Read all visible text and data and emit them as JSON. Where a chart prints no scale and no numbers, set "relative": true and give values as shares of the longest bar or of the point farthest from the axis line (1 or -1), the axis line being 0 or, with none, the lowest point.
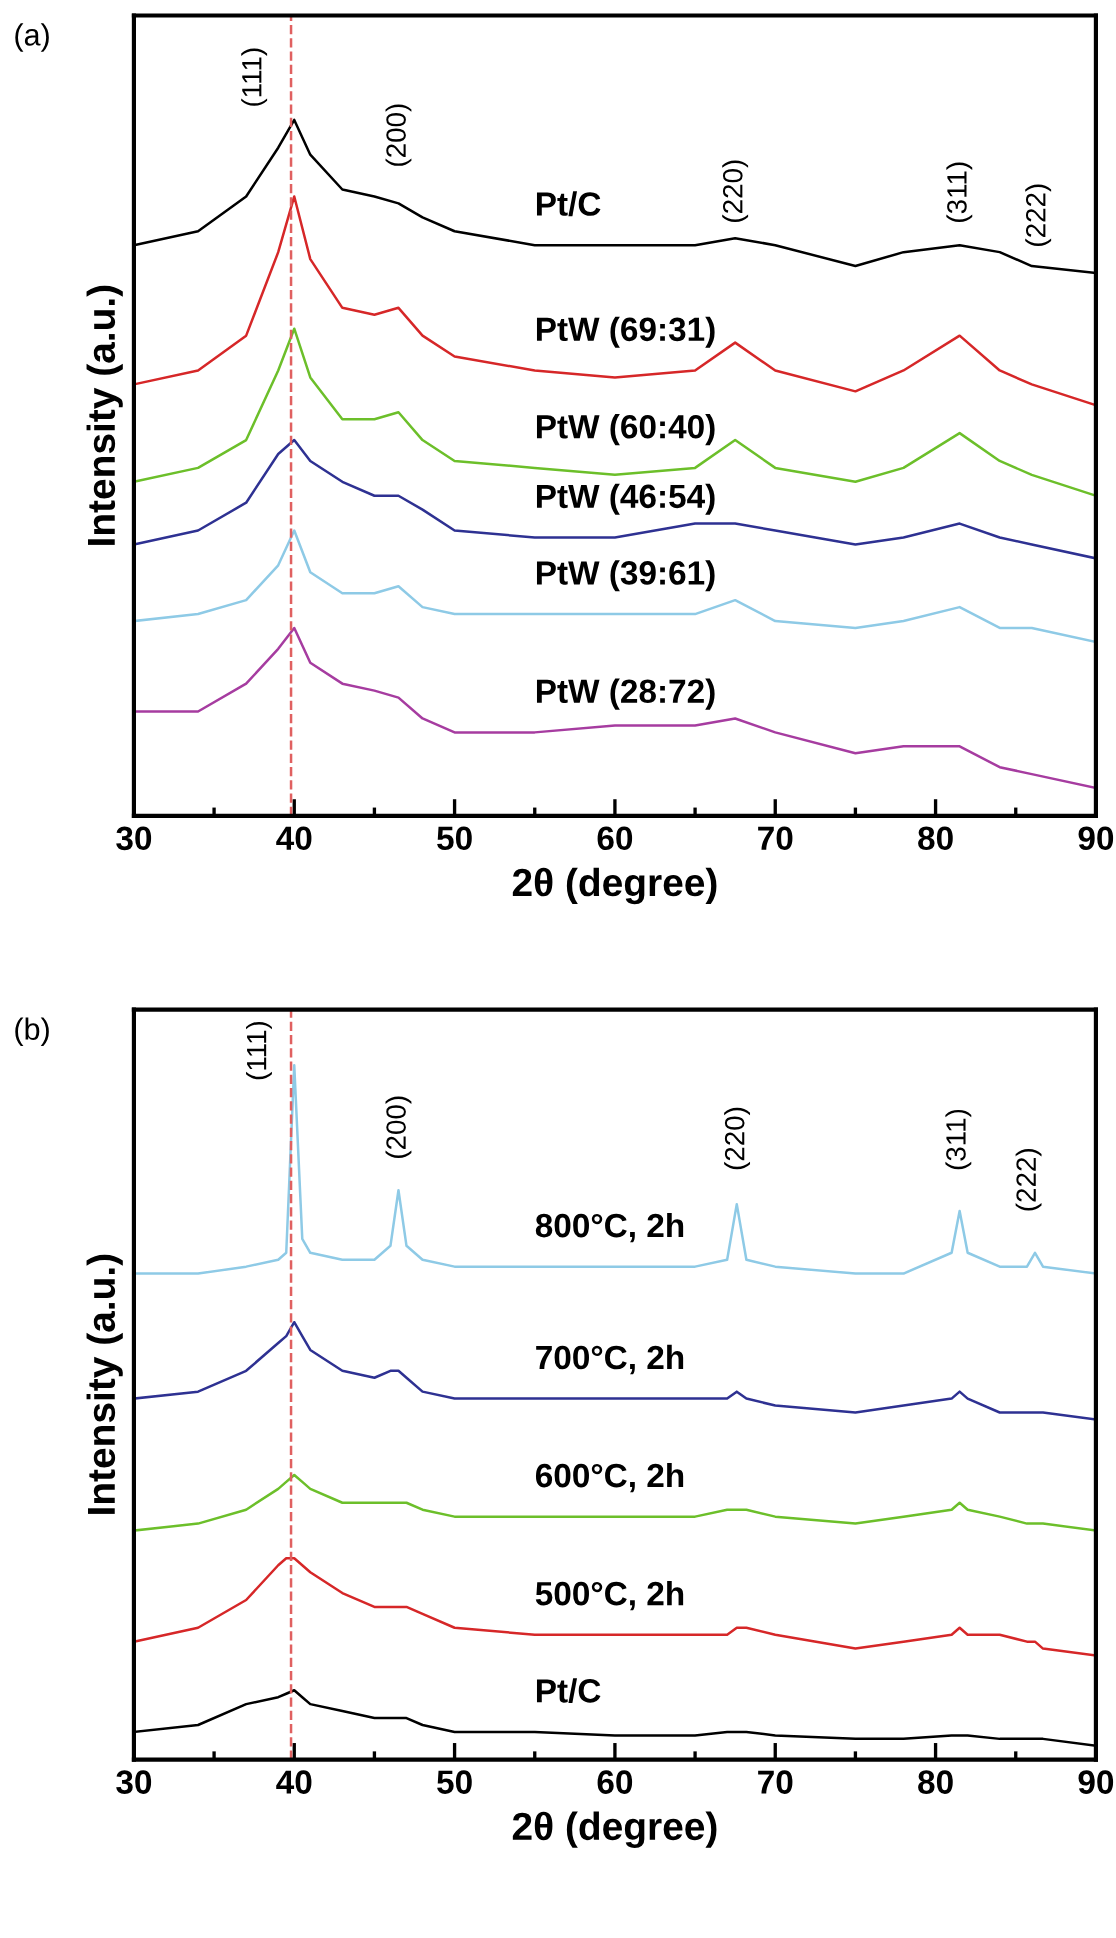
{
  "chart_data": [
    {
      "type": "line",
      "title": "(a)",
      "xlabel": "2θ (degree)",
      "ylabel": "Intensity (a.u.)",
      "relative": true,
      "xlim": [
        30,
        90
      ],
      "xticks": [
        30,
        40,
        50,
        60,
        70,
        80,
        90
      ],
      "tick_labels": "x",
      "grid": false,
      "legend": false,
      "marker": "none",
      "line_style": "solid",
      "x": [
        30,
        34,
        37,
        39,
        40,
        41,
        43,
        45,
        46.5,
        48,
        50,
        55,
        60,
        65,
        67.5,
        70,
        75,
        78,
        81.5,
        84,
        86,
        90
      ],
      "series": [
        {
          "name": "Pt/C",
          "color": "#000000",
          "values": [
            0.82,
            0.84,
            0.89,
            0.96,
            1.0,
            0.95,
            0.9,
            0.89,
            0.88,
            0.86,
            0.84,
            0.82,
            0.82,
            0.82,
            0.83,
            0.82,
            0.79,
            0.81,
            0.82,
            0.81,
            0.79,
            0.78
          ]
        },
        {
          "name": "PtW (69:31)",
          "color": "#d62728",
          "values": [
            0.62,
            0.64,
            0.69,
            0.81,
            0.89,
            0.8,
            0.73,
            0.72,
            0.73,
            0.69,
            0.66,
            0.64,
            0.63,
            0.64,
            0.68,
            0.64,
            0.61,
            0.64,
            0.69,
            0.64,
            0.62,
            0.59
          ]
        },
        {
          "name": "PtW (60:40)",
          "color": "#6cbf2a",
          "values": [
            0.48,
            0.5,
            0.54,
            0.64,
            0.7,
            0.63,
            0.57,
            0.57,
            0.58,
            0.54,
            0.51,
            0.5,
            0.49,
            0.5,
            0.54,
            0.5,
            0.48,
            0.5,
            0.55,
            0.51,
            0.49,
            0.46
          ]
        },
        {
          "name": "PtW (46:54)",
          "color": "#2e3192",
          "values": [
            0.39,
            0.41,
            0.45,
            0.52,
            0.54,
            0.51,
            0.48,
            0.46,
            0.46,
            0.44,
            0.41,
            0.4,
            0.4,
            0.42,
            0.42,
            0.41,
            0.39,
            0.4,
            0.42,
            0.4,
            0.39,
            0.37
          ]
        },
        {
          "name": "PtW (39:61)",
          "color": "#8ecae6",
          "values": [
            0.28,
            0.29,
            0.31,
            0.36,
            0.41,
            0.35,
            0.32,
            0.32,
            0.33,
            0.3,
            0.29,
            0.29,
            0.29,
            0.29,
            0.31,
            0.28,
            0.27,
            0.28,
            0.3,
            0.27,
            0.27,
            0.25
          ]
        },
        {
          "name": "PtW (28:72)",
          "color": "#a63ca0",
          "values": [
            0.15,
            0.15,
            0.19,
            0.24,
            0.27,
            0.22,
            0.19,
            0.18,
            0.17,
            0.14,
            0.12,
            0.12,
            0.13,
            0.13,
            0.14,
            0.12,
            0.09,
            0.1,
            0.1,
            0.07,
            0.06,
            0.04
          ]
        }
      ],
      "ref_lines": [
        {
          "axis": "x",
          "value": 39.8,
          "label": null,
          "color": "#e06060",
          "line_style": "dashed"
        }
      ],
      "annotations": [
        "(111)",
        "(200)",
        "(220)",
        "(311)",
        "(222)"
      ]
    },
    {
      "type": "line",
      "title": "(b)",
      "xlabel": "2θ (degree)",
      "ylabel": "Intensity (a.u.)",
      "relative": true,
      "xlim": [
        30,
        90
      ],
      "xticks": [
        30,
        40,
        50,
        60,
        70,
        80,
        90
      ],
      "tick_labels": "x",
      "grid": false,
      "legend": false,
      "marker": "none",
      "line_style": "solid",
      "x": [
        30,
        34,
        37,
        39,
        39.5,
        40,
        40.5,
        41,
        43,
        45,
        46,
        46.5,
        47,
        48,
        50,
        55,
        60,
        65,
        67,
        67.6,
        68.2,
        70,
        75,
        78,
        81,
        81.5,
        82,
        84,
        85.7,
        86.2,
        86.7,
        90
      ],
      "series": [
        {
          "name": "800°C, 2h",
          "color": "#8ecae6",
          "values": [
            0.7,
            0.7,
            0.71,
            0.72,
            0.73,
            1.0,
            0.75,
            0.73,
            0.72,
            0.72,
            0.74,
            0.82,
            0.74,
            0.72,
            0.71,
            0.71,
            0.71,
            0.71,
            0.72,
            0.8,
            0.72,
            0.71,
            0.7,
            0.7,
            0.73,
            0.79,
            0.73,
            0.71,
            0.71,
            0.73,
            0.71,
            0.7
          ]
        },
        {
          "name": "700°C, 2h",
          "color": "#2e3192",
          "values": [
            0.52,
            0.53,
            0.56,
            0.6,
            0.61,
            0.63,
            0.61,
            0.59,
            0.56,
            0.55,
            0.56,
            0.56,
            0.55,
            0.53,
            0.52,
            0.52,
            0.52,
            0.52,
            0.52,
            0.53,
            0.52,
            0.51,
            0.5,
            0.51,
            0.52,
            0.53,
            0.52,
            0.5,
            0.5,
            0.5,
            0.5,
            0.49
          ]
        },
        {
          "name": "600°C, 2h",
          "color": "#6cbf2a",
          "values": [
            0.33,
            0.34,
            0.36,
            0.39,
            0.4,
            0.41,
            0.4,
            0.39,
            0.37,
            0.37,
            0.37,
            0.37,
            0.37,
            0.36,
            0.35,
            0.35,
            0.35,
            0.35,
            0.36,
            0.36,
            0.36,
            0.35,
            0.34,
            0.35,
            0.36,
            0.37,
            0.36,
            0.35,
            0.34,
            0.34,
            0.34,
            0.33
          ]
        },
        {
          "name": "500°C, 2h",
          "color": "#d62728",
          "values": [
            0.17,
            0.19,
            0.23,
            0.28,
            0.29,
            0.29,
            0.28,
            0.27,
            0.24,
            0.22,
            0.22,
            0.22,
            0.22,
            0.21,
            0.19,
            0.18,
            0.18,
            0.18,
            0.18,
            0.19,
            0.19,
            0.18,
            0.16,
            0.17,
            0.18,
            0.19,
            0.18,
            0.18,
            0.17,
            0.17,
            0.16,
            0.15
          ]
        },
        {
          "name": "Pt/C",
          "color": "#000000",
          "values": [
            0.04,
            0.05,
            0.08,
            0.09,
            0.095,
            0.1,
            0.09,
            0.08,
            0.07,
            0.06,
            0.06,
            0.06,
            0.06,
            0.05,
            0.04,
            0.04,
            0.035,
            0.035,
            0.04,
            0.04,
            0.04,
            0.035,
            0.03,
            0.03,
            0.035,
            0.035,
            0.035,
            0.03,
            0.03,
            0.03,
            0.03,
            0.02
          ]
        }
      ],
      "ref_lines": [
        {
          "axis": "x",
          "value": 39.8,
          "label": null,
          "color": "#e06060",
          "line_style": "dashed"
        }
      ],
      "annotations": [
        "(111)",
        "(200)",
        "(220)",
        "(311)",
        "(222)"
      ]
    }
  ]
}
